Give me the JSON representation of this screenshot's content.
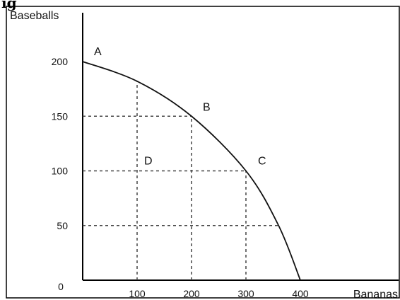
{
  "header": {
    "fragment": "ig"
  },
  "chart_data": {
    "type": "line",
    "title": "",
    "xlabel": "Bananas",
    "ylabel": "Baseballs",
    "xlim": [
      0,
      400
    ],
    "ylim": [
      0,
      200
    ],
    "x_ticks": [
      100,
      200,
      300,
      400
    ],
    "y_ticks": [
      50,
      100,
      150,
      200
    ],
    "origin_label": "0",
    "grid": "dashed guide lines",
    "series": [
      {
        "name": "",
        "points": [
          {
            "x": 0,
            "y": 200
          },
          {
            "x": 100,
            "y": 182
          },
          {
            "x": 200,
            "y": 150
          },
          {
            "x": 300,
            "y": 100
          },
          {
            "x": 360,
            "y": 50
          },
          {
            "x": 400,
            "y": 0
          }
        ]
      }
    ],
    "dashed_guides": [
      {
        "y": 150,
        "x_end": 200
      },
      {
        "y": 100,
        "x_end": 300
      },
      {
        "y": 50,
        "x_end": 360
      },
      {
        "x": 100,
        "y_end": 182
      },
      {
        "x": 200,
        "y_end": 150
      },
      {
        "x": 300,
        "y_end": 100
      }
    ],
    "annotations": [
      {
        "label": "A",
        "x": 0,
        "y": 200
      },
      {
        "label": "B",
        "x": 200,
        "y": 150
      },
      {
        "label": "C",
        "x": 300,
        "y": 100
      },
      {
        "label": "D",
        "x": 100,
        "y": 100
      }
    ]
  }
}
